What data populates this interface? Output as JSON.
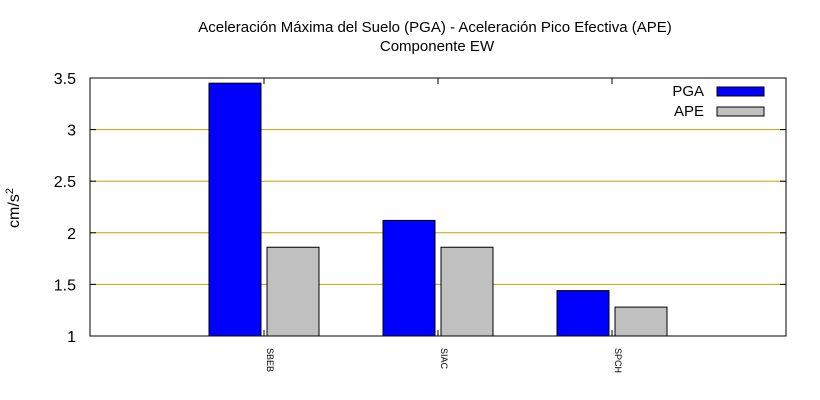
{
  "chart_data": {
    "type": "bar",
    "title_line1": "Aceleración Máxima del Suelo (PGA) -  Aceleración Pico Efectiva (APE)",
    "title_line2": "Componente EW",
    "ylabel": "cm/s",
    "ylabel_sup": "2",
    "xlabel": "",
    "ylim": [
      1,
      3.5
    ],
    "yticks": [
      "1",
      "1.5",
      "2",
      "2.5",
      "3",
      "3.5"
    ],
    "grid": "horizontal",
    "legend_position": "top-right",
    "categories": [
      "SBEB",
      "SIAC",
      "SPCH"
    ],
    "series": [
      {
        "name": "PGA",
        "values": [
          3.45,
          2.12,
          1.44
        ],
        "color": "#0000ff"
      },
      {
        "name": "APE",
        "values": [
          1.86,
          1.86,
          1.28
        ],
        "color": "#c0c0c0"
      }
    ],
    "grid_color": "#c8a000"
  }
}
